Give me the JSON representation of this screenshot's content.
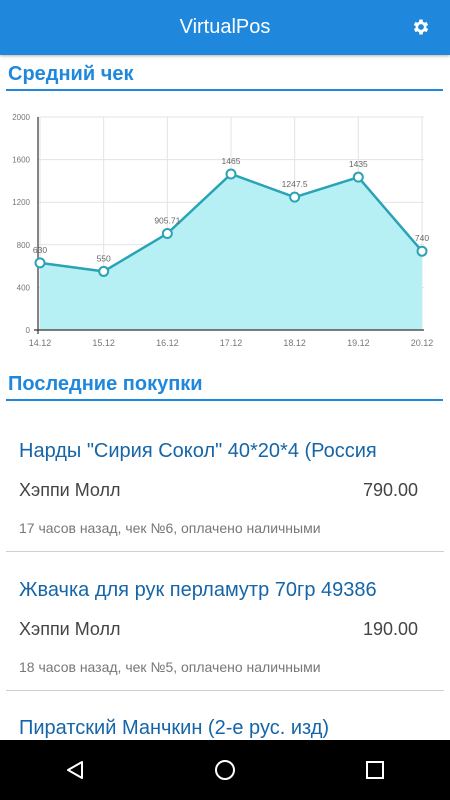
{
  "app": {
    "title": "VirtualPos"
  },
  "sections": {
    "avg_check": "Средний чек",
    "recent": "Последние покупки"
  },
  "chart_data": {
    "type": "area",
    "categories": [
      "14.12",
      "15.12",
      "16.12",
      "17.12",
      "18.12",
      "19.12",
      "20.12"
    ],
    "values": [
      630,
      550,
      905.71,
      1465,
      1247.5,
      1435,
      740
    ],
    "data_labels": [
      "630",
      "550",
      "905.71",
      "1465",
      "1247.5",
      "1435",
      "740"
    ],
    "ylim": [
      0,
      2000
    ],
    "yticks": [
      "0",
      "400",
      "800",
      "1200",
      "1600",
      "2000"
    ],
    "grid": true,
    "line_color": "#2aa3b5",
    "fill_color": "#b6f0f5"
  },
  "purchases": [
    {
      "name": "Нарды \"Сирия Сокол\" 40*20*4 (Россия",
      "store": "Хэппи Молл",
      "price": "790.00",
      "meta": "17 часов назад, чек №6, оплачено наличными"
    },
    {
      "name": "Жвачка для рук перламутр 70гр 49386",
      "store": "Хэппи Молл",
      "price": "190.00",
      "meta": "18 часов назад, чек №5, оплачено наличными"
    },
    {
      "name": "Пиратский Манчкин (2-е рус. изд)",
      "store": "",
      "price": "",
      "meta": ""
    }
  ],
  "icons": {
    "settings": "gear-icon",
    "back": "back-triangle-icon",
    "home": "home-circle-icon",
    "recents": "recents-square-icon"
  },
  "colors": {
    "primary": "#1f88dd",
    "item_title": "#1565a8"
  }
}
